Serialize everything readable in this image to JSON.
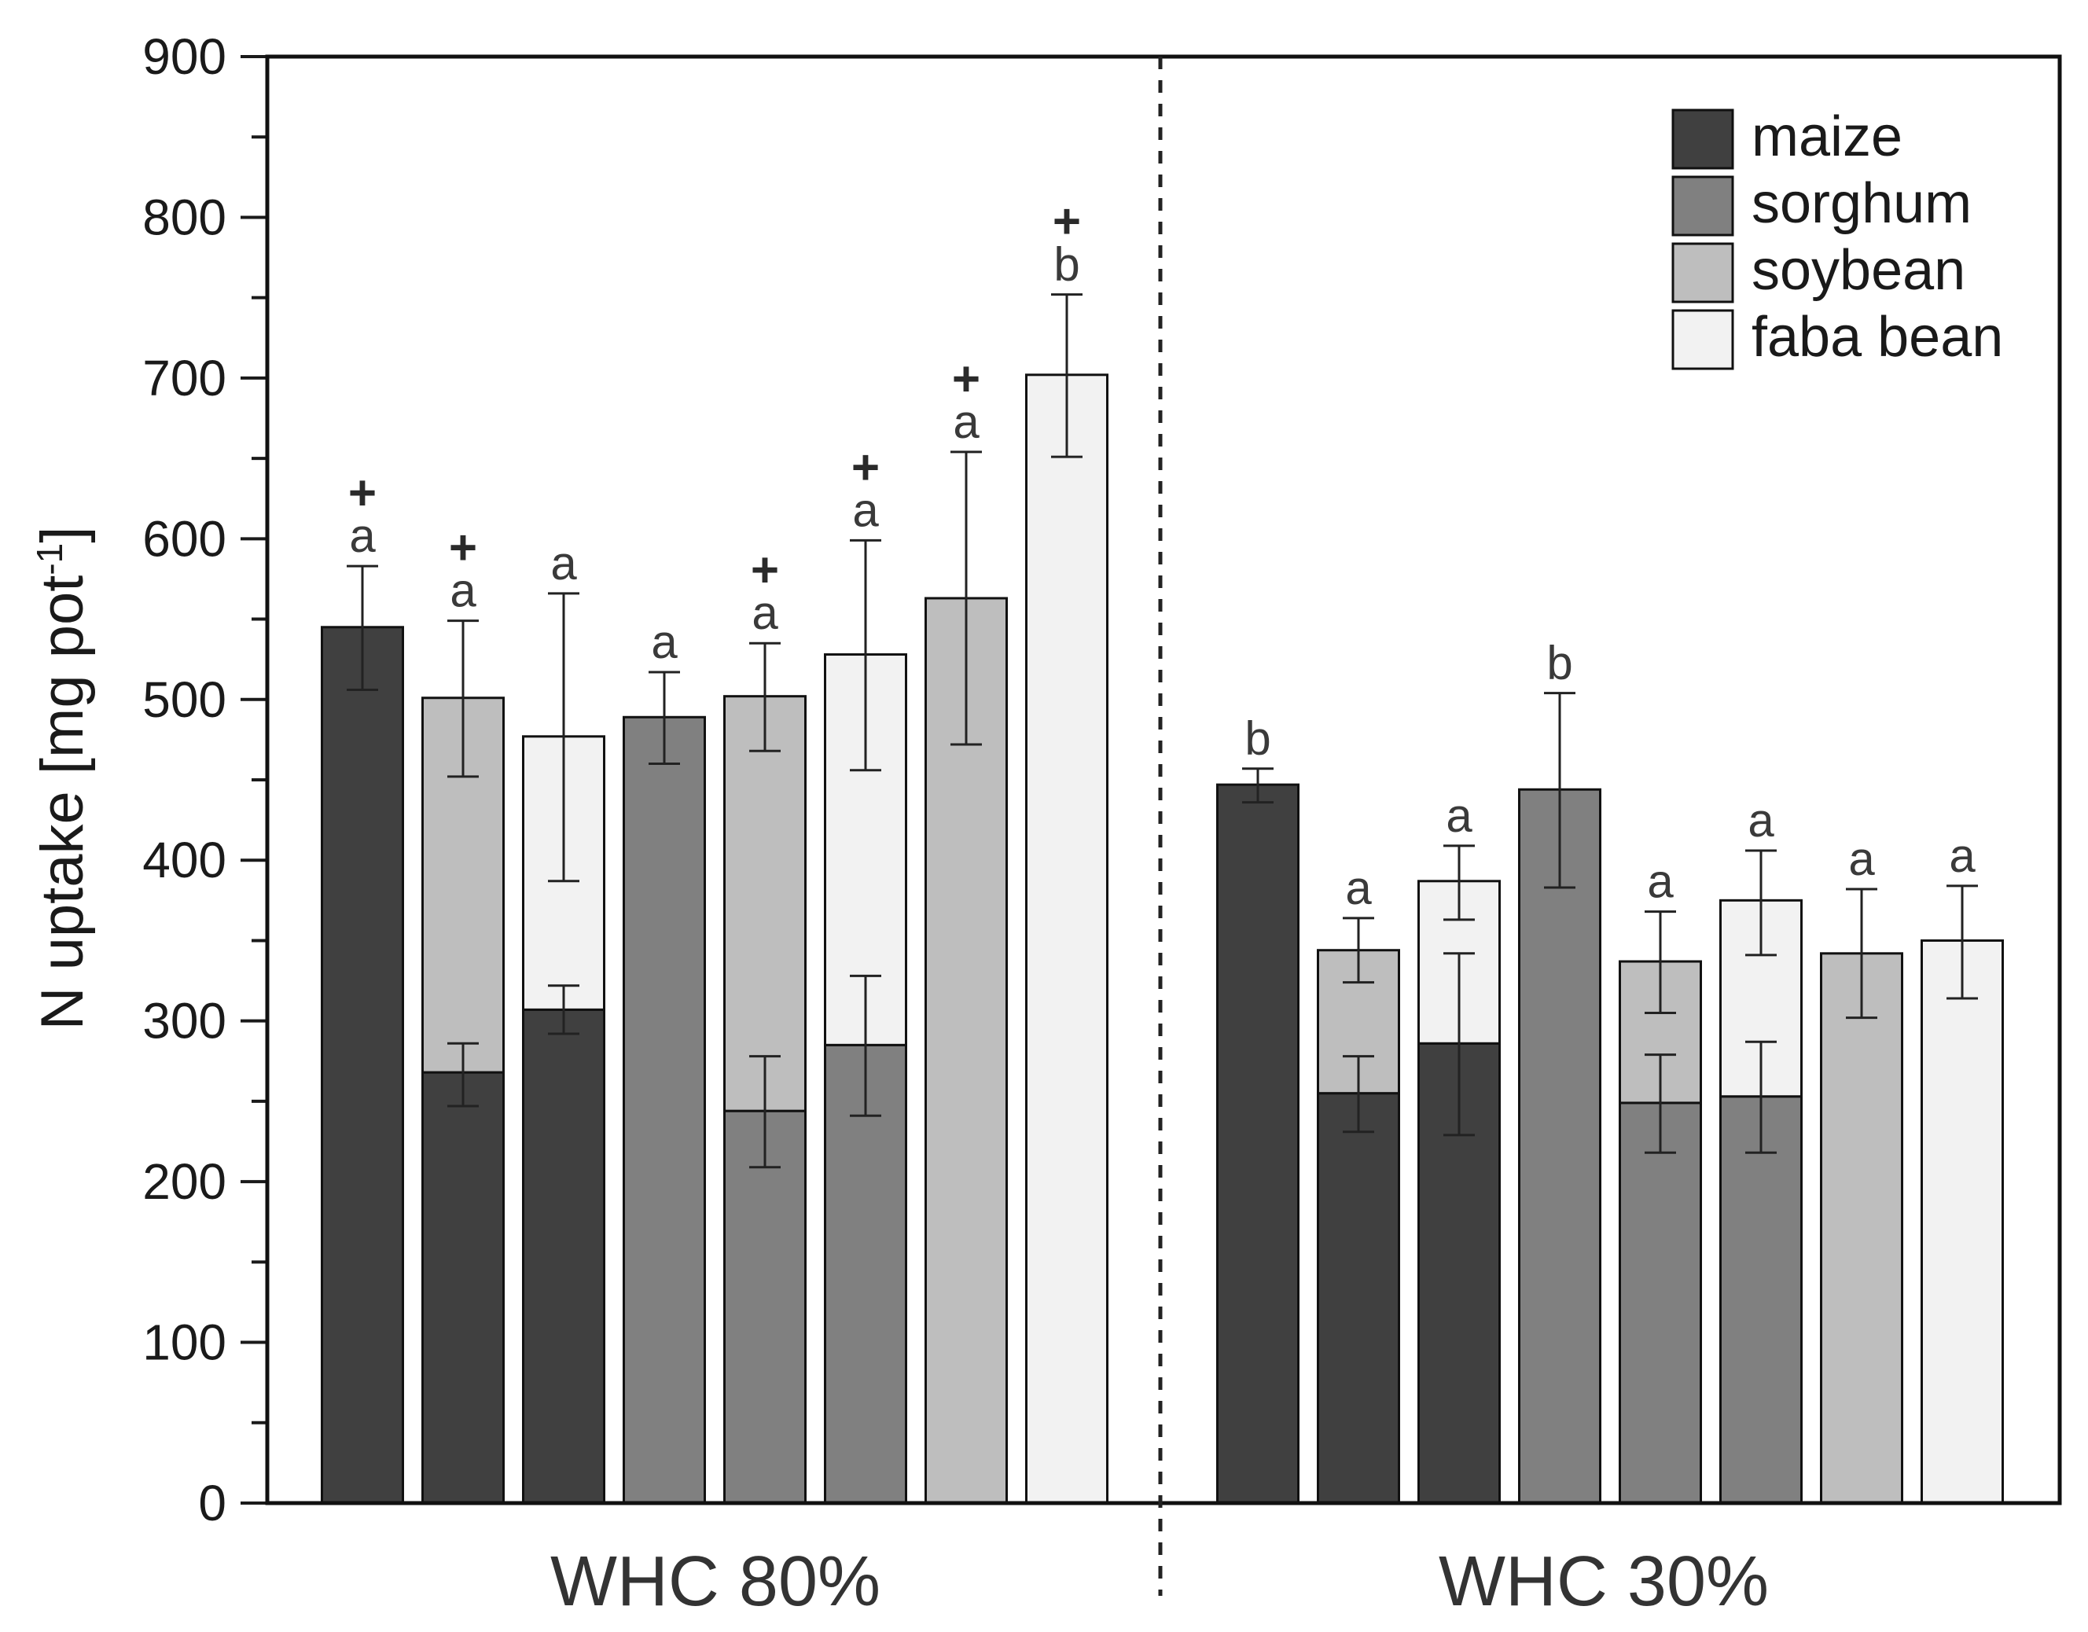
{
  "chart_data": {
    "type": "bar",
    "subtype": "stacked",
    "ylabel": "N uptake [mg pot",
    "ylabel_superscript": "-1",
    "ylabel_suffix": "]",
    "ylim": [
      0,
      900
    ],
    "yticks": [
      "0",
      "100",
      "200",
      "300",
      "400",
      "500",
      "600",
      "700",
      "800",
      "900"
    ],
    "species": [
      {
        "name": "maize",
        "color": "#404040"
      },
      {
        "name": "sorghum",
        "color": "#808080"
      },
      {
        "name": "soybean",
        "color": "#bebebe"
      },
      {
        "name": "faba bean",
        "color": "#f2f2f2"
      }
    ],
    "groups": [
      {
        "label": "WHC 80%",
        "bars": [
          {
            "segments": [
              {
                "species": "maize",
                "value": 545
              }
            ],
            "total_err": [
              506,
              583
            ],
            "letter": "a",
            "plus": "+"
          },
          {
            "segments": [
              {
                "species": "maize",
                "value": 268
              },
              {
                "species": "soybean",
                "value": 233
              }
            ],
            "seg_err": [
              247,
              286
            ],
            "total_err": [
              452,
              549
            ],
            "letter": "a",
            "plus": "+"
          },
          {
            "segments": [
              {
                "species": "maize",
                "value": 307
              },
              {
                "species": "faba bean",
                "value": 170
              }
            ],
            "seg_err": [
              292,
              322
            ],
            "total_err": [
              387,
              566
            ],
            "letter": "a",
            "plus": ""
          },
          {
            "segments": [
              {
                "species": "sorghum",
                "value": 489
              }
            ],
            "total_err": [
              460,
              517
            ],
            "letter": "a",
            "plus": ""
          },
          {
            "segments": [
              {
                "species": "sorghum",
                "value": 244
              },
              {
                "species": "soybean",
                "value": 258
              }
            ],
            "seg_err": [
              209,
              278
            ],
            "total_err": [
              468,
              535
            ],
            "letter": "a",
            "plus": "+"
          },
          {
            "segments": [
              {
                "species": "sorghum",
                "value": 285
              },
              {
                "species": "faba bean",
                "value": 243
              }
            ],
            "seg_err": [
              241,
              328
            ],
            "total_err": [
              456,
              599
            ],
            "letter": "a",
            "plus": "+"
          },
          {
            "segments": [
              {
                "species": "soybean",
                "value": 563
              }
            ],
            "total_err": [
              472,
              654
            ],
            "letter": "a",
            "plus": "+"
          },
          {
            "segments": [
              {
                "species": "faba bean",
                "value": 702
              }
            ],
            "total_err": [
              651,
              752
            ],
            "letter": "b",
            "plus": "+"
          }
        ]
      },
      {
        "label": "WHC 30%",
        "bars": [
          {
            "segments": [
              {
                "species": "maize",
                "value": 447
              }
            ],
            "total_err": [
              436,
              457
            ],
            "letter": "b",
            "plus": ""
          },
          {
            "segments": [
              {
                "species": "maize",
                "value": 255
              },
              {
                "species": "soybean",
                "value": 89
              }
            ],
            "seg_err": [
              231,
              278
            ],
            "total_err": [
              324,
              364
            ],
            "letter": "a",
            "plus": ""
          },
          {
            "segments": [
              {
                "species": "maize",
                "value": 286
              },
              {
                "species": "faba bean",
                "value": 101
              }
            ],
            "seg_err": [
              229,
              342
            ],
            "total_err": [
              363,
              409
            ],
            "letter": "a",
            "plus": ""
          },
          {
            "segments": [
              {
                "species": "sorghum",
                "value": 444
              }
            ],
            "total_err": [
              383,
              504
            ],
            "letter": "b",
            "plus": ""
          },
          {
            "segments": [
              {
                "species": "sorghum",
                "value": 249
              },
              {
                "species": "soybean",
                "value": 88
              }
            ],
            "seg_err": [
              218,
              279
            ],
            "total_err": [
              305,
              368
            ],
            "letter": "a",
            "plus": ""
          },
          {
            "segments": [
              {
                "species": "sorghum",
                "value": 253
              },
              {
                "species": "faba bean",
                "value": 122
              }
            ],
            "seg_err": [
              218,
              287
            ],
            "total_err": [
              341,
              406
            ],
            "letter": "a",
            "plus": ""
          },
          {
            "segments": [
              {
                "species": "soybean",
                "value": 342
              }
            ],
            "total_err": [
              302,
              382
            ],
            "letter": "a",
            "plus": ""
          },
          {
            "segments": [
              {
                "species": "faba bean",
                "value": 350
              }
            ],
            "total_err": [
              314,
              384
            ],
            "letter": "a",
            "plus": ""
          }
        ]
      }
    ]
  }
}
